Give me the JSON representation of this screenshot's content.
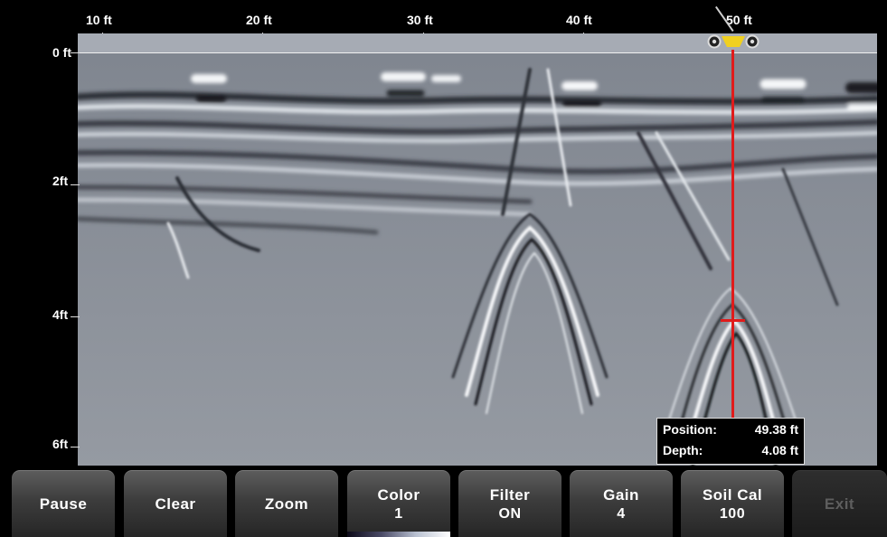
{
  "distance_axis": {
    "ticks": [
      "10 ft",
      "20 ft",
      "30 ft",
      "40 ft",
      "50 ft"
    ]
  },
  "depth_axis": {
    "ticks": [
      "0 ft",
      "2ft",
      "4ft",
      "6ft"
    ]
  },
  "readout": {
    "position_label": "Position:",
    "position_value": "49.38 ft",
    "depth_label": "Depth:",
    "depth_value": "4.08 ft"
  },
  "cursor": {
    "position_ft": 49.38,
    "depth_ft": 4.08,
    "color": "#e01b1b"
  },
  "cart_icon": {
    "name": "gpr-cart-icon",
    "color": "#f0d020"
  },
  "buttons": {
    "pause": "Pause",
    "clear": "Clear",
    "zoom": "Zoom",
    "color_label": "Color",
    "color_value": "1",
    "filter_label": "Filter",
    "filter_value": "ON",
    "gain_label": "Gain",
    "gain_value": "4",
    "soilcal_label": "Soil Cal",
    "soilcal_value": "100",
    "exit": "Exit"
  }
}
